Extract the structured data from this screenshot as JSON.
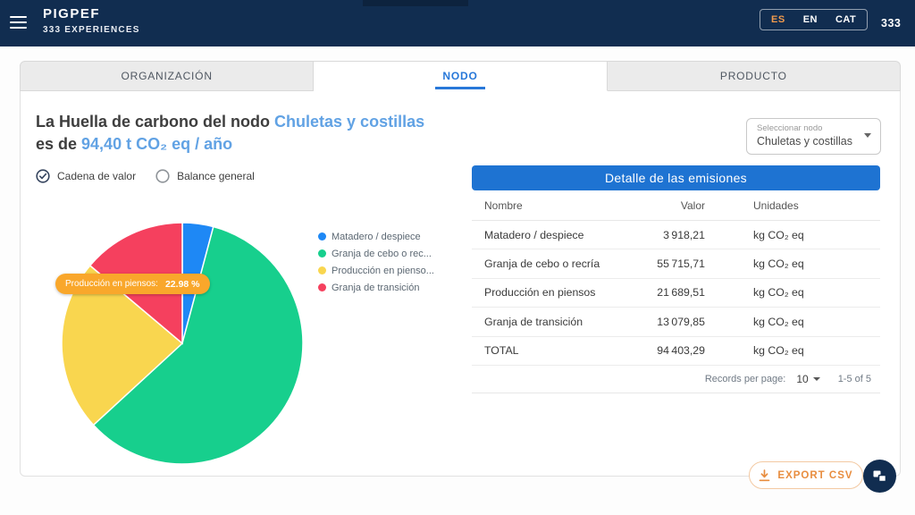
{
  "header": {
    "title": "PIGPEF",
    "subtitle": "333 EXPERIENCES",
    "languages": [
      "ES",
      "EN",
      "CAT"
    ],
    "active_language": "ES",
    "badge": "333"
  },
  "tabs": [
    {
      "label": "ORGANIZACIÓN",
      "active": false
    },
    {
      "label": "NODO",
      "active": true
    },
    {
      "label": "PRODUCTO",
      "active": false
    }
  ],
  "heading": {
    "prefix": "La Huella de carbono del nodo ",
    "node_name": "Chuletas y costillas",
    "middle": "es de ",
    "value_text": "94,40 t CO₂ eq / año"
  },
  "node_select": {
    "label": "Seleccionar nodo",
    "value": "Chuletas y costillas"
  },
  "view_options": [
    {
      "label": "Cadena de valor",
      "selected": true
    },
    {
      "label": "Balance general",
      "selected": false
    }
  ],
  "chart_data": {
    "type": "pie",
    "labels": [
      "Matadero / despiece",
      "Granja de cebo o recría",
      "Producción en piensos",
      "Granja de transición"
    ],
    "legend_labels": [
      "Matadero / despiece",
      "Granja de cebo o rec...",
      "Producción en pienso...",
      "Granja de transición"
    ],
    "values": [
      3918.21,
      55715.71,
      21689.51,
      13079.85
    ],
    "percentages": [
      4.15,
      59.02,
      22.98,
      13.85
    ],
    "colors": [
      "#1e88f5",
      "#17cf8d",
      "#f9d64f",
      "#f5405e"
    ],
    "unit": "kg CO₂ eq",
    "total": 94403.29,
    "legend_position": "right",
    "start_angle_deg": 0,
    "tooltip": {
      "label": "Producción en piensos:",
      "value": "22.98 %"
    }
  },
  "emissions_table": {
    "title": "Detalle de las emisiones",
    "columns": [
      "Nombre",
      "Valor",
      "Unidades"
    ],
    "rows": [
      {
        "name": "Matadero / despiece",
        "value": "3 918,21",
        "unit": "kg CO₂ eq"
      },
      {
        "name": "Granja de cebo o recría",
        "value": "55 715,71",
        "unit": "kg CO₂ eq"
      },
      {
        "name": "Producción en piensos",
        "value": "21 689,51",
        "unit": "kg CO₂ eq"
      },
      {
        "name": "Granja de transición",
        "value": "13 079,85",
        "unit": "kg CO₂ eq"
      },
      {
        "name": "TOTAL",
        "value": "94 403,29",
        "unit": "kg CO₂ eq"
      }
    ],
    "pagination": {
      "records_per_page_label": "Records per page:",
      "records_per_page": "10",
      "range": "1-5 of 5"
    }
  },
  "actions": {
    "export_csv": "EXPORT CSV"
  },
  "colors": {
    "header_navy": "#112d50",
    "table_header_blue": "#1e73d2",
    "heading_blue": "#61a2e4",
    "active_tab_blue": "#2878d9",
    "export_orange": "#e88d3f",
    "tooltip_orange": "#f9a72b",
    "lang_active_orange": "#f09a4d"
  }
}
